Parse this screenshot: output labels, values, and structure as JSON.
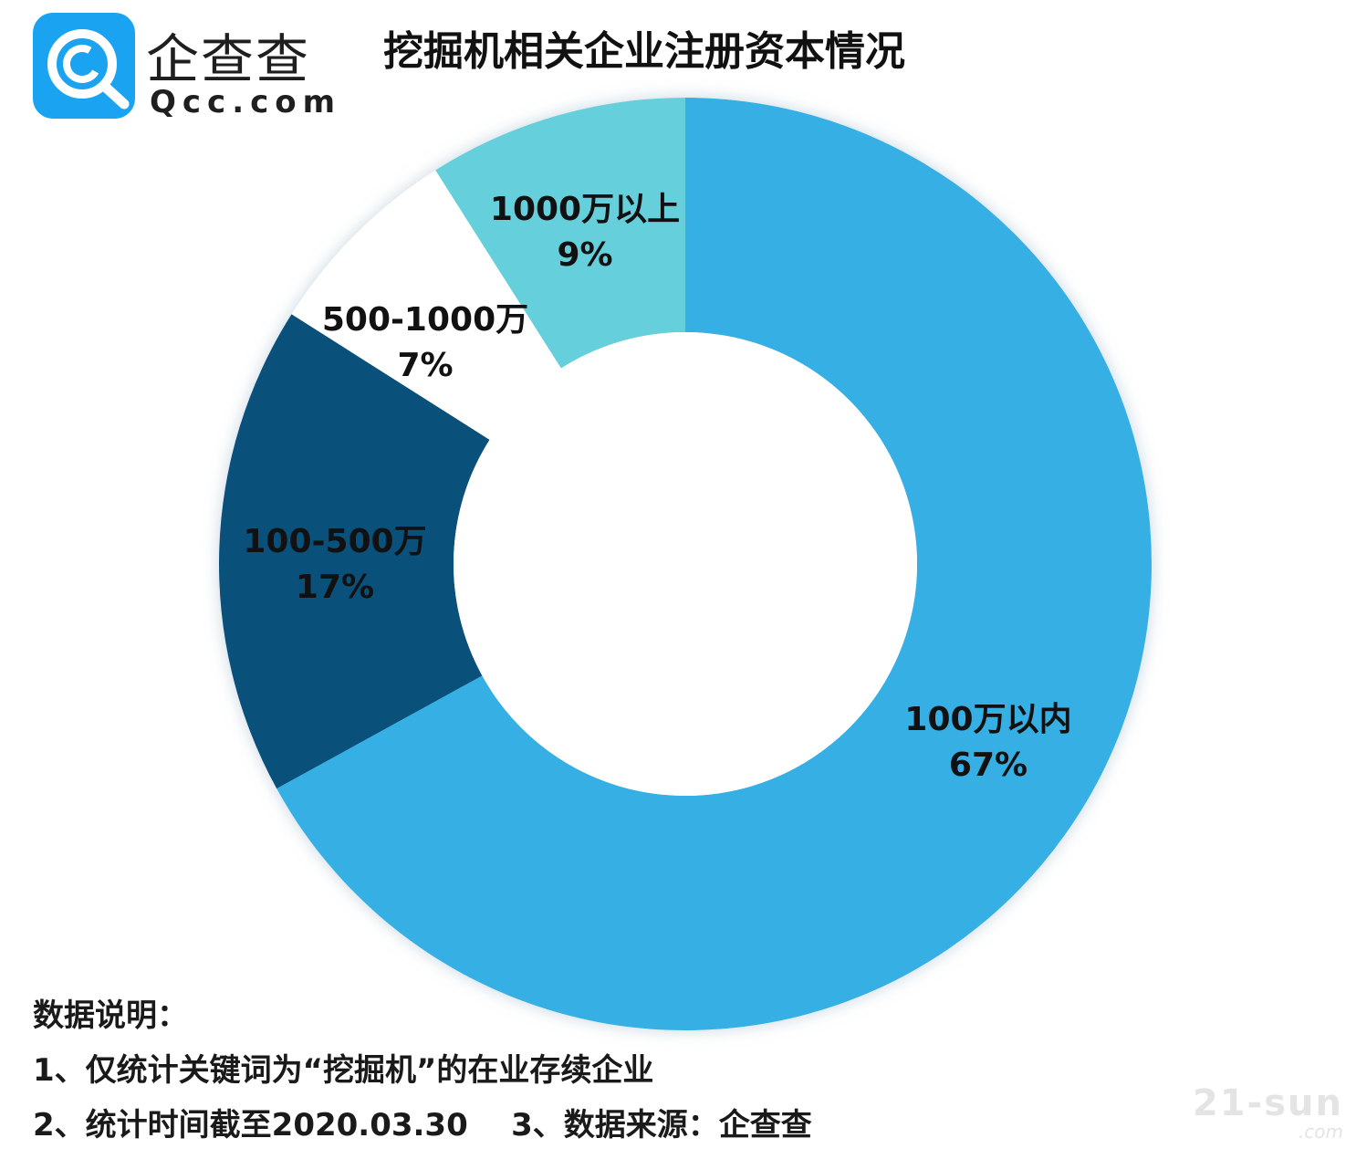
{
  "brand": {
    "name": "企查查",
    "domain": "Qcc.com",
    "accent": "#1aa3f0"
  },
  "chart_data": {
    "type": "pie",
    "title": "挖掘机相关企业注册资本情况",
    "donut": true,
    "slices": [
      {
        "name": "100万以内",
        "value": 67,
        "label": "67%",
        "color": "#36afe4"
      },
      {
        "name": "100-500万",
        "value": 17,
        "label": "17%",
        "color": "#09507b"
      },
      {
        "name": "500-1000万",
        "value": 7,
        "label": "7%",
        "color": "#ffffff"
      },
      {
        "name": "1000万以上",
        "value": 9,
        "label": "9%",
        "color": "#66cfdc"
      }
    ]
  },
  "notes": {
    "heading": "数据说明：",
    "line1": "1、仅统计关键词为“挖掘机”的在业存续企业",
    "line2": "2、统计时间截至2020.03.30    3、数据来源：企查查"
  },
  "watermark": {
    "text": "21-sun",
    "sub": ".com"
  }
}
